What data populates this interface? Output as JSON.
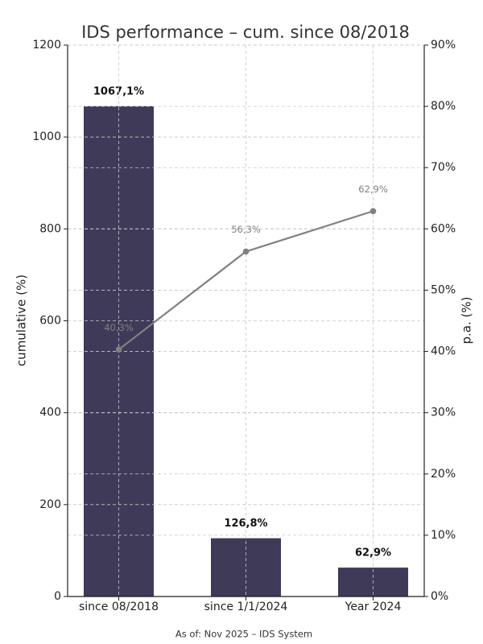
{
  "chart_data": {
    "type": "bar",
    "title": "IDS performance – cum. since 08/2018",
    "ylabel": "cumulative (%)",
    "y2label": "p.a. (%)",
    "footer": "As of: Nov 2025 – IDS System",
    "categories": [
      "since 08/2018",
      "since 1/1/2024",
      "Year 2024"
    ],
    "series": [
      {
        "type": "bar",
        "color": "#3e3a58",
        "values": [
          1067.1,
          126.8,
          62.9
        ],
        "value_labels": [
          "1067,1%",
          "126,8%",
          "62,9%"
        ]
      },
      {
        "type": "line",
        "axis": "y2",
        "color": "#808080",
        "values": [
          40.3,
          56.3,
          62.9
        ],
        "value_labels": [
          "40,3%",
          "56,3%",
          "62,9%"
        ]
      }
    ],
    "ylim": [
      0,
      1200
    ],
    "yticks": [
      0,
      200,
      400,
      600,
      800,
      1000,
      1200
    ],
    "y2lim": [
      0,
      90
    ],
    "y2ticks": [
      {
        "value": 0,
        "label": "0%"
      },
      {
        "value": 10,
        "label": "10%"
      },
      {
        "value": 20,
        "label": "20%"
      },
      {
        "value": 30,
        "label": "30%"
      },
      {
        "value": 40,
        "label": "40%"
      },
      {
        "value": 50,
        "label": "50%"
      },
      {
        "value": 60,
        "label": "60%"
      },
      {
        "value": 70,
        "label": "70%"
      },
      {
        "value": 80,
        "label": "80%"
      },
      {
        "value": 90,
        "label": "90%"
      }
    ],
    "grid": true
  }
}
